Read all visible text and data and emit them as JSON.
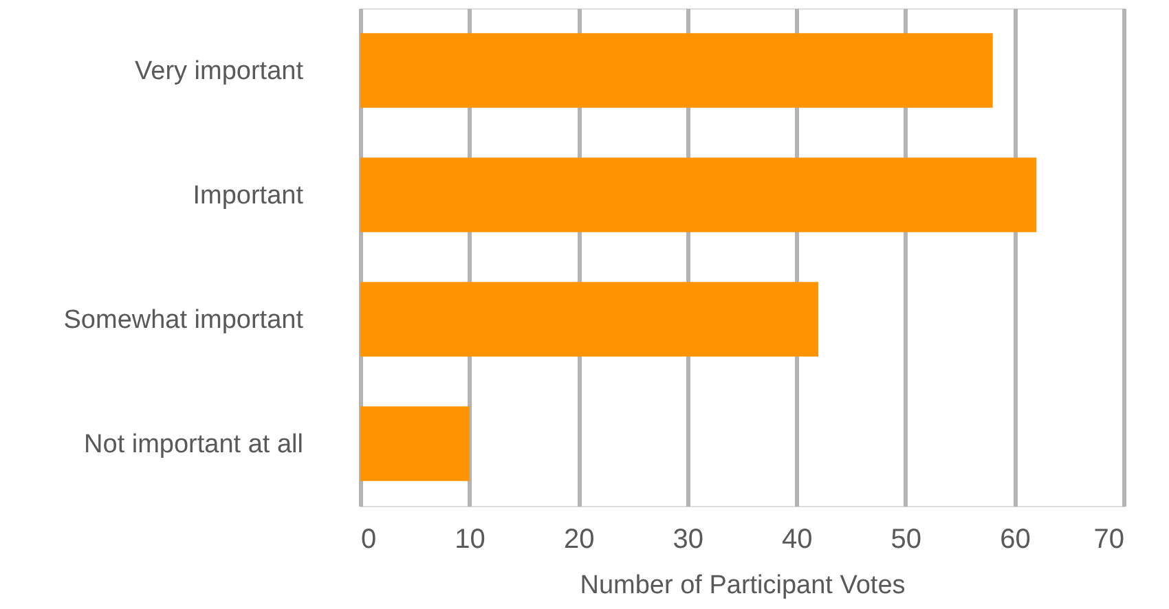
{
  "chart_data": {
    "type": "bar",
    "orientation": "horizontal",
    "xlabel": "Number of Participant Votes",
    "categories": [
      "Very important",
      "Important",
      "Somewhat important",
      "Not important at all"
    ],
    "values": [
      58,
      62,
      42,
      10
    ],
    "color": "#ff9400",
    "xlim": [
      0,
      70
    ],
    "xticks": [
      0,
      10,
      20,
      30,
      40,
      50,
      60,
      70
    ],
    "grid": "x"
  }
}
